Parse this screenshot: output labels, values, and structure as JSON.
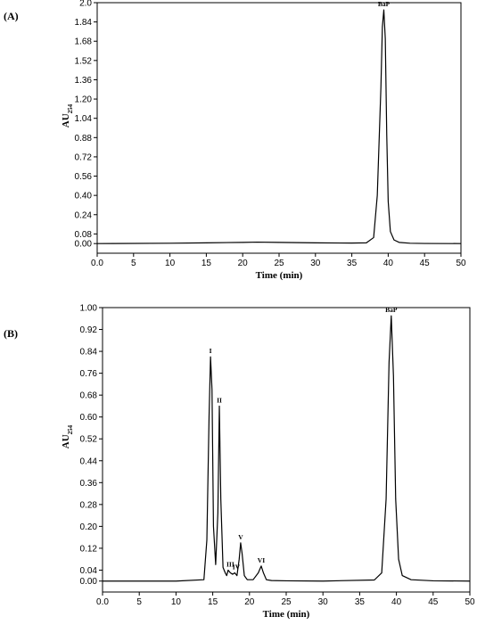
{
  "chart_data": [
    {
      "type": "line",
      "panel_label": "(A)",
      "xlabel": "Time  (min)",
      "ylabel_main": "AU",
      "ylabel_sub": "254",
      "xlim": [
        0,
        50
      ],
      "ylim": [
        -0.08,
        2.0
      ],
      "x_ticks": [
        "0.0",
        "5",
        "10",
        "15",
        "20",
        "25",
        "30",
        "35",
        "40",
        "45",
        "50"
      ],
      "x_tick_values": [
        0,
        5,
        10,
        15,
        20,
        25,
        30,
        35,
        40,
        45,
        50
      ],
      "y_ticks": [
        "2.0",
        "1.84",
        "1.68",
        "1.52",
        "1.36",
        "1.20",
        "1.04",
        "0.88",
        "0.72",
        "0.56",
        "0.40",
        "0.24",
        "0.08",
        "0.00"
      ],
      "y_tick_values": [
        2.0,
        1.84,
        1.68,
        1.52,
        1.36,
        1.2,
        1.04,
        0.88,
        0.72,
        0.56,
        0.4,
        0.24,
        0.08,
        0.0
      ],
      "series": [
        {
          "x": [
            0,
            10,
            15,
            20,
            22,
            25,
            30,
            35,
            37,
            38,
            38.5,
            39,
            39.2,
            39.4,
            39.6,
            39.8,
            40,
            40.3,
            40.8,
            41.5,
            43,
            45,
            50
          ],
          "y": [
            0.0,
            0.003,
            0.006,
            0.01,
            0.012,
            0.01,
            0.006,
            0.004,
            0.006,
            0.05,
            0.4,
            1.3,
            1.8,
            1.94,
            1.7,
            0.9,
            0.35,
            0.1,
            0.03,
            0.01,
            0.003,
            0.001,
            0.0
          ]
        }
      ],
      "annotations": [
        {
          "text": "BaP",
          "x": 39.4,
          "y": 1.94
        }
      ]
    },
    {
      "type": "line",
      "panel_label": "(B)",
      "xlabel": "Time  (min)",
      "ylabel_main": "AU",
      "ylabel_sub": "254",
      "xlim": [
        0,
        50
      ],
      "ylim": [
        -0.04,
        1.0
      ],
      "x_ticks": [
        "0.0",
        "5",
        "10",
        "15",
        "20",
        "25",
        "30",
        "35",
        "40",
        "45",
        "50"
      ],
      "x_tick_values": [
        0,
        5,
        10,
        15,
        20,
        25,
        30,
        35,
        40,
        45,
        50
      ],
      "y_ticks": [
        "1.00",
        "0.92",
        "0.84",
        "0.76",
        "0.68",
        "0.60",
        "0.52",
        "0.44",
        "0.36",
        "0.28",
        "0.20",
        "0.12",
        "0.04",
        "0.00"
      ],
      "y_tick_values": [
        1.0,
        0.92,
        0.84,
        0.76,
        0.68,
        0.6,
        0.52,
        0.44,
        0.36,
        0.28,
        0.2,
        0.12,
        0.04,
        0.0
      ],
      "series": [
        {
          "x": [
            0,
            10,
            13.8,
            14.2,
            14.5,
            14.7,
            14.9,
            15.1,
            15.4,
            15.7,
            15.9,
            16.1,
            16.4,
            16.7,
            16.9,
            17.1,
            17.4,
            17.7,
            18.0,
            18.3,
            18.6,
            18.8,
            19.0,
            19.3,
            19.7,
            20.5,
            21.2,
            21.6,
            21.9,
            22.3,
            23,
            25,
            30,
            37,
            38,
            38.6,
            39.0,
            39.3,
            39.6,
            39.9,
            40.3,
            40.8,
            42,
            45,
            50
          ],
          "y": [
            0.0,
            0.0,
            0.005,
            0.15,
            0.6,
            0.82,
            0.7,
            0.2,
            0.06,
            0.25,
            0.64,
            0.3,
            0.05,
            0.03,
            0.02,
            0.04,
            0.03,
            0.025,
            0.03,
            0.02,
            0.08,
            0.14,
            0.1,
            0.02,
            0.005,
            0.005,
            0.03,
            0.055,
            0.03,
            0.005,
            0.002,
            0.001,
            0.0,
            0.004,
            0.03,
            0.3,
            0.8,
            0.97,
            0.75,
            0.3,
            0.08,
            0.02,
            0.005,
            0.001,
            0.0
          ]
        }
      ],
      "annotations": [
        {
          "text": "I",
          "x": 14.7,
          "y": 0.82
        },
        {
          "text": "II",
          "x": 15.9,
          "y": 0.64
        },
        {
          "text": "III",
          "x": 17.4,
          "y": 0.04
        },
        {
          "text": "IV",
          "x": 18.2,
          "y": 0.03
        },
        {
          "text": "V",
          "x": 18.8,
          "y": 0.14
        },
        {
          "text": "VI",
          "x": 21.6,
          "y": 0.055
        },
        {
          "text": "BaP",
          "x": 39.3,
          "y": 0.97
        }
      ]
    }
  ]
}
